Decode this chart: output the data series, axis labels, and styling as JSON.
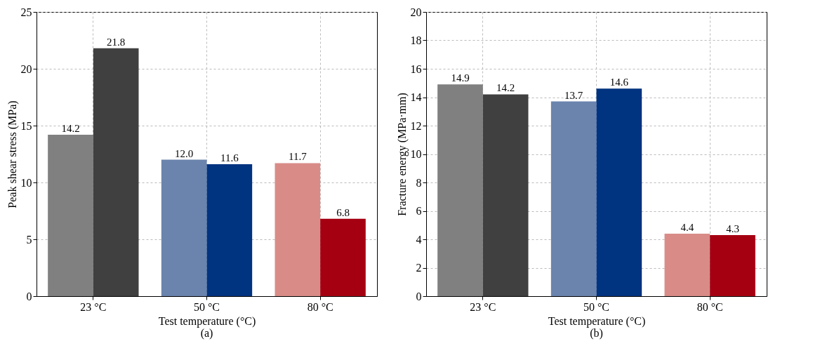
{
  "chart_data": [
    {
      "type": "bar",
      "title": "(a)",
      "xlabel": "Test temperature (°C)",
      "ylabel": "Peak shear stress (MPa)",
      "categories": [
        "23 °C",
        "50 °C",
        "80 °C"
      ],
      "series": [
        {
          "values": [
            14.2,
            12.0,
            11.7
          ],
          "colors": [
            "#808080",
            "#6a84ad",
            "#d98c87"
          ],
          "value_labels": [
            "14.2",
            "12.0",
            "11.7"
          ]
        },
        {
          "values": [
            21.8,
            11.6,
            6.8
          ],
          "colors": [
            "#404040",
            "#003380",
            "#a50012"
          ],
          "value_labels": [
            "21.8",
            "11.6",
            "6.8"
          ]
        }
      ],
      "ylim": [
        0,
        25
      ],
      "yticks": [
        0,
        5,
        10,
        15,
        20,
        25
      ],
      "grid": true
    },
    {
      "type": "bar",
      "title": "(b)",
      "xlabel": "Test temperature (°C)",
      "ylabel": "Fracture energy (MPa·mm)",
      "categories": [
        "23 °C",
        "50 °C",
        "80 °C"
      ],
      "series": [
        {
          "values": [
            14.9,
            13.7,
            4.4
          ],
          "colors": [
            "#808080",
            "#6a84ad",
            "#d98c87"
          ],
          "value_labels": [
            "14.9",
            "13.7",
            "4.4"
          ]
        },
        {
          "values": [
            14.2,
            14.6,
            4.3
          ],
          "colors": [
            "#404040",
            "#003380",
            "#a50012"
          ],
          "value_labels": [
            "14.2",
            "14.6",
            "4.3"
          ]
        }
      ],
      "ylim": [
        0,
        20
      ],
      "yticks": [
        0,
        2,
        4,
        6,
        8,
        10,
        12,
        14,
        16,
        18,
        20
      ],
      "grid": true
    }
  ]
}
